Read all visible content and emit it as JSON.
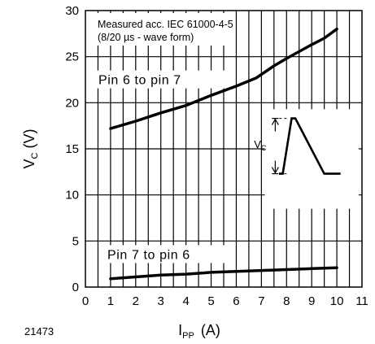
{
  "figure_id": "21473",
  "chart_data": {
    "type": "line",
    "note": [
      "Measured acc. IEC 61000-4-5",
      "(8/20 µs - wave form)"
    ],
    "xlabel": {
      "main": "I",
      "sub": "PP",
      "unit": "(A)"
    },
    "ylabel": {
      "main": "V",
      "sub": "C",
      "unit": "(V)"
    },
    "xlim": [
      0,
      11
    ],
    "ylim": [
      0,
      30
    ],
    "xticks": [
      0,
      1,
      2,
      3,
      4,
      5,
      6,
      7,
      8,
      9,
      10,
      11
    ],
    "yticks": [
      0,
      5,
      10,
      15,
      20,
      25,
      30
    ],
    "grid": true,
    "series": [
      {
        "name": "Pin 6 to pin 7",
        "x": [
          1,
          2,
          3,
          4,
          5,
          6,
          6.8,
          7.5,
          8,
          9,
          9.5,
          10
        ],
        "y": [
          17.2,
          18,
          18.9,
          19.7,
          20.8,
          21.8,
          22.7,
          24,
          24.8,
          26.3,
          27,
          28
        ]
      },
      {
        "name": "Pin 7 to pin 6",
        "x": [
          1,
          2,
          3,
          4,
          5,
          6,
          7,
          8,
          9,
          10
        ],
        "y": [
          0.9,
          1.1,
          1.3,
          1.4,
          1.6,
          1.7,
          1.8,
          1.9,
          2,
          2.1
        ]
      }
    ],
    "inset": {
      "label_main": "V",
      "label_sub": "C"
    }
  }
}
